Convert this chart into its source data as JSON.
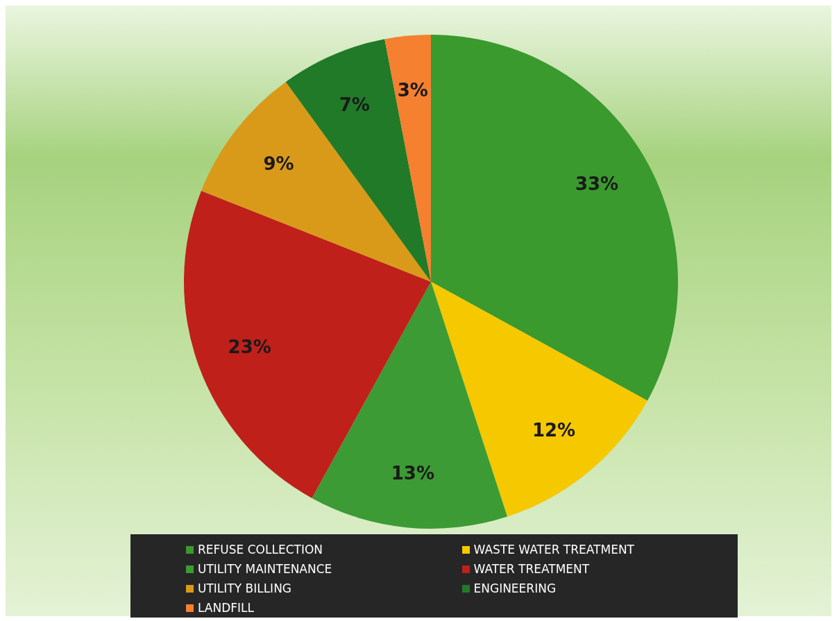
{
  "chart_data": {
    "type": "pie",
    "categories": [
      "REFUSE COLLECTION",
      "WASTE WATER TREATMENT",
      "UTILITY MAINTENANCE",
      "WATER TREATMENT",
      "UTILITY BILLING",
      "ENGINEERING",
      "LANDFILL"
    ],
    "values": [
      33,
      12,
      13,
      23,
      9,
      7,
      3
    ],
    "value_labels": [
      "33%",
      "12%",
      "13%",
      "23%",
      "9%",
      "7%",
      "3%"
    ],
    "colors": [
      "#3a9a2e",
      "#f5c800",
      "#3c9b34",
      "#c0201a",
      "#d99a1a",
      "#217a28",
      "#f58030"
    ],
    "legend": "bottom"
  }
}
